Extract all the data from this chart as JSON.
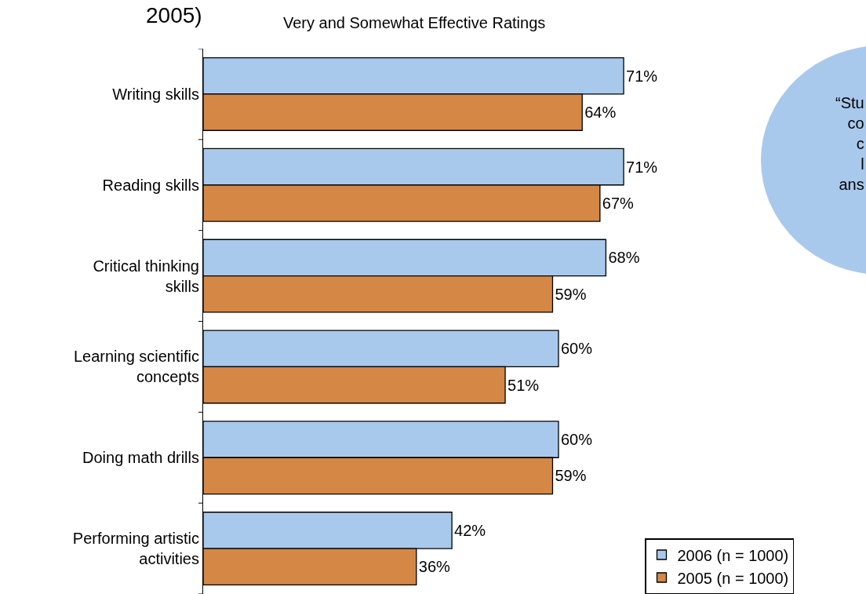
{
  "chart_data": {
    "type": "bar",
    "orientation": "horizontal",
    "xlim": [
      0,
      100
    ],
    "tick_labels": "y",
    "title": "2005)",
    "subtitle": "Very and Somewhat Effective Ratings",
    "categories": [
      "Writing skills",
      "Reading skills",
      "Critical thinking skills",
      "Learning scientific concepts",
      "Doing math drills",
      "Performing artistic activities"
    ],
    "series": [
      {
        "name": "2006 (n = 1000)",
        "color": "#a9c9ec",
        "values": [
          71,
          71,
          68,
          60,
          60,
          42
        ],
        "value_labels": [
          "71%",
          "71%",
          "68%",
          "60%",
          "60%",
          "42%"
        ]
      },
      {
        "name": "2005 (n = 1000)",
        "color": "#d58746",
        "values": [
          64,
          67,
          59,
          51,
          59,
          36
        ],
        "value_labels": [
          "64%",
          "67%",
          "59%",
          "51%",
          "59%",
          "36%"
        ]
      }
    ],
    "annotations": [
      "“Stu\nco\nc\nl\nans"
    ],
    "legend": "bottom right"
  }
}
